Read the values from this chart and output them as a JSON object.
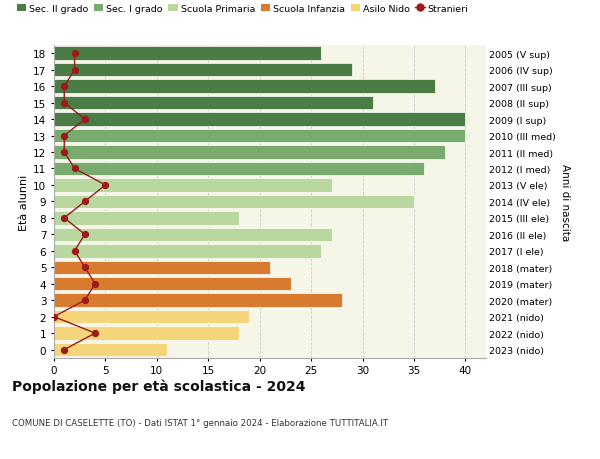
{
  "ages": [
    18,
    17,
    16,
    15,
    14,
    13,
    12,
    11,
    10,
    9,
    8,
    7,
    6,
    5,
    4,
    3,
    2,
    1,
    0
  ],
  "right_labels": [
    "2005 (V sup)",
    "2006 (IV sup)",
    "2007 (III sup)",
    "2008 (II sup)",
    "2009 (I sup)",
    "2010 (III med)",
    "2011 (II med)",
    "2012 (I med)",
    "2013 (V ele)",
    "2014 (IV ele)",
    "2015 (III ele)",
    "2016 (II ele)",
    "2017 (I ele)",
    "2018 (mater)",
    "2019 (mater)",
    "2020 (mater)",
    "2021 (nido)",
    "2022 (nido)",
    "2023 (nido)"
  ],
  "bar_values": [
    26,
    29,
    37,
    31,
    40,
    40,
    38,
    36,
    27,
    35,
    18,
    27,
    26,
    21,
    23,
    28,
    19,
    18,
    11
  ],
  "bar_colors": [
    "#4a7c45",
    "#4a7c45",
    "#4a7c45",
    "#4a7c45",
    "#4a7c45",
    "#7aab6e",
    "#7aab6e",
    "#7aab6e",
    "#b8d8a0",
    "#b8d8a0",
    "#b8d8a0",
    "#b8d8a0",
    "#b8d8a0",
    "#d97b2e",
    "#d97b2e",
    "#d97b2e",
    "#f5d57a",
    "#f5d57a",
    "#f5d57a"
  ],
  "stranieri_values": [
    2,
    2,
    1,
    1,
    3,
    1,
    1,
    2,
    5,
    3,
    1,
    3,
    2,
    3,
    4,
    3,
    0,
    4,
    1
  ],
  "stranieri_color": "#9b1a1a",
  "legend_labels": [
    "Sec. II grado",
    "Sec. I grado",
    "Scuola Primaria",
    "Scuola Infanzia",
    "Asilo Nido",
    "Stranieri"
  ],
  "legend_colors": [
    "#4a7c45",
    "#7aab6e",
    "#b8d8a0",
    "#d97b2e",
    "#f5d57a",
    "#9b1a1a"
  ],
  "ylabel_left": "Età alunni",
  "ylabel_right": "Anni di nascita",
  "title": "Popolazione per età scolastica - 2024",
  "subtitle": "COMUNE DI CASELETTE (TO) - Dati ISTAT 1° gennaio 2024 - Elaborazione TUTTITALIA.IT",
  "xlim": [
    0,
    42
  ],
  "xticks": [
    0,
    5,
    10,
    15,
    20,
    25,
    30,
    35,
    40
  ],
  "background_color": "#ffffff",
  "plot_bg_color": "#f5f5e8"
}
